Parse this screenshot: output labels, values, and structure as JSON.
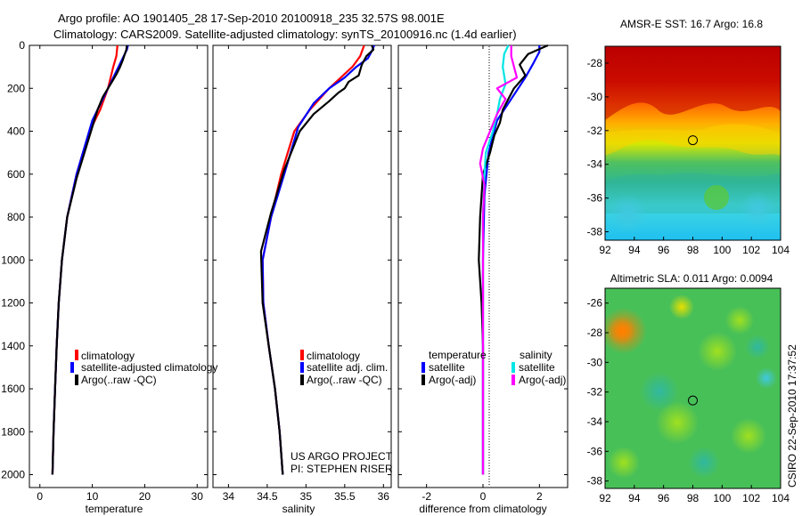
{
  "header": {
    "line1": "Argo profile: AO 1901405_28 17-Sep-2010 20100918_235 32.57S 98.001E",
    "line2": "Climatology: CARS2009. Satellite-adjusted climatology: synTS_20100916.nc (1.4d earlier)"
  },
  "colors": {
    "clim": "#ff0000",
    "sat": "#0000ff",
    "argo": "#000000",
    "sal_sat": "#00e5e5",
    "sal_argo": "#ff00ff"
  },
  "chart_data": [
    {
      "type": "line",
      "title": "",
      "xlabel": "temperature",
      "ylabel": "",
      "xlim": [
        -2,
        32
      ],
      "ylim": [
        2060,
        0
      ],
      "xticks": [
        0,
        10,
        20,
        30
      ],
      "yticks": [
        0,
        200,
        400,
        600,
        800,
        1000,
        1200,
        1400,
        1600,
        1800,
        2000
      ],
      "legend": [
        "climatology",
        "satellite-adjusted climatology",
        "Argo(..raw -QC)"
      ],
      "series": [
        {
          "name": "climatology",
          "color": "#ff0000",
          "x": [
            14.8,
            14.6,
            14.0,
            13.0,
            11.5,
            9.5,
            7.0,
            5.2,
            4.2,
            3.6,
            3.2,
            2.9,
            2.6,
            2.4
          ],
          "y": [
            0,
            50,
            100,
            200,
            300,
            400,
            600,
            800,
            1000,
            1200,
            1400,
            1600,
            1800,
            2000
          ]
        },
        {
          "name": "satellite-adjusted climatology",
          "color": "#0000ff",
          "x": [
            16.8,
            16.6,
            15.8,
            14.0,
            12.0,
            10.0,
            7.0,
            5.2,
            4.2,
            3.6,
            3.2,
            2.9,
            2.6,
            2.4
          ],
          "y": [
            0,
            20,
            60,
            150,
            250,
            350,
            600,
            800,
            1000,
            1200,
            1400,
            1600,
            1800,
            2000
          ]
        },
        {
          "name": "Argo(..raw -QC)",
          "color": "#000000",
          "x": [
            16.6,
            16.5,
            16.2,
            15.8,
            15.3,
            14.7,
            14.0,
            13.0,
            12.0,
            11.0,
            10.0,
            8.5,
            7.0,
            5.2,
            4.2,
            3.6,
            3.2,
            2.9,
            2.6,
            2.4
          ],
          "y": [
            0,
            20,
            40,
            70,
            100,
            130,
            160,
            200,
            240,
            300,
            380,
            500,
            620,
            800,
            1000,
            1200,
            1400,
            1600,
            1800,
            2000
          ]
        }
      ]
    },
    {
      "type": "line",
      "title": "",
      "xlabel": "salinity",
      "ylabel": "",
      "xlim": [
        33.8,
        36.1
      ],
      "ylim": [
        2060,
        0
      ],
      "xticks": [
        34,
        34.5,
        35,
        35.5,
        36
      ],
      "legend": [
        "climatology",
        "satellite adj. clim.",
        "Argo(..raw -QC)"
      ],
      "annotations": [
        "US ARGO PROJECT",
        "PI: STEPHEN RISER"
      ],
      "series": [
        {
          "name": "climatology",
          "color": "#ff0000",
          "x": [
            35.75,
            35.7,
            35.6,
            35.3,
            35.05,
            34.85,
            34.68,
            34.55,
            34.44,
            34.45,
            34.52,
            34.6,
            34.66,
            34.7
          ],
          "y": [
            0,
            50,
            100,
            200,
            300,
            400,
            600,
            800,
            1000,
            1200,
            1400,
            1600,
            1800,
            2000
          ]
        },
        {
          "name": "satellite adj. clim.",
          "color": "#0000ff",
          "x": [
            35.88,
            35.86,
            35.8,
            35.65,
            35.5,
            35.3,
            35.1,
            34.9,
            34.72,
            34.55,
            34.44,
            34.45,
            34.52,
            34.6,
            34.66,
            34.7
          ],
          "y": [
            0,
            20,
            60,
            100,
            150,
            200,
            270,
            380,
            600,
            800,
            1000,
            1200,
            1400,
            1600,
            1800,
            2000
          ]
        },
        {
          "name": "Argo(..raw -QC)",
          "color": "#000000",
          "x": [
            35.85,
            35.87,
            35.78,
            35.72,
            35.68,
            35.55,
            35.5,
            35.42,
            35.3,
            35.1,
            34.92,
            34.72,
            34.55,
            34.42,
            34.44,
            34.52,
            34.6,
            34.66,
            34.7
          ],
          "y": [
            0,
            20,
            50,
            90,
            140,
            170,
            200,
            220,
            260,
            320,
            400,
            580,
            780,
            960,
            1200,
            1400,
            1600,
            1800,
            2000
          ]
        }
      ]
    },
    {
      "type": "line",
      "title": "",
      "xlabel": "difference from climatology",
      "ylabel": "",
      "xlim": [
        -3,
        3
      ],
      "ylim": [
        2060,
        0
      ],
      "xticks": [
        -2,
        0,
        2
      ],
      "legend": [
        "temperature",
        "satellite",
        "Argo(-adj)",
        "salinity",
        "satellite",
        "Argo(-adj)"
      ],
      "series": [
        {
          "name": "temperature satellite",
          "color": "#0000ff",
          "x": [
            2.0,
            2.0,
            1.8,
            1.5,
            1.0,
            0.5,
            0.2,
            0.05,
            0.0,
            0.0,
            0.0
          ],
          "y": [
            0,
            30,
            80,
            150,
            250,
            350,
            500,
            700,
            1000,
            1500,
            2000
          ]
        },
        {
          "name": "temperature Argo(-adj)",
          "color": "#000000",
          "x": [
            2.3,
            1.6,
            1.3,
            1.5,
            1.1,
            0.9,
            0.7,
            0.6,
            0.4,
            0.25,
            0.0,
            -0.1,
            -0.15,
            -0.05,
            0.0,
            0.0,
            0.0
          ],
          "y": [
            0,
            40,
            90,
            140,
            200,
            250,
            300,
            360,
            420,
            500,
            600,
            800,
            1000,
            1200,
            1400,
            1600,
            2000
          ]
        },
        {
          "name": "salinity satellite",
          "color": "#00e5e5",
          "x": [
            0.9,
            0.75,
            0.7,
            0.8,
            0.6,
            0.5,
            0.35,
            0.1,
            0.05,
            0.0,
            0.0,
            0.0
          ],
          "y": [
            0,
            40,
            100,
            180,
            250,
            320,
            400,
            500,
            600,
            800,
            1200,
            2000
          ]
        },
        {
          "name": "salinity Argo(-adj)",
          "color": "#ff00ff",
          "x": [
            1.0,
            1.0,
            1.2,
            0.5,
            0.8,
            0.5,
            0.25,
            0.0,
            -0.1,
            0.05,
            0.0,
            0.0
          ],
          "y": [
            0,
            50,
            150,
            200,
            250,
            320,
            400,
            480,
            550,
            650,
            800,
            2000
          ]
        }
      ]
    },
    {
      "type": "heatmap",
      "title": "AMSR-E SST: 16.7 Argo: 16.8",
      "xlim": [
        92,
        104
      ],
      "ylim": [
        -38.5,
        -27
      ],
      "xticks": [
        92,
        94,
        96,
        98,
        100,
        102,
        104
      ],
      "yticks": [
        -28,
        -30,
        -32,
        -34,
        -36,
        -38
      ],
      "marker": {
        "x": 98,
        "y": -32.57
      }
    },
    {
      "type": "heatmap",
      "title": "Altimetric SLA: 0.011 Argo: 0.0094",
      "xlim": [
        92,
        104
      ],
      "ylim": [
        -38.5,
        -25
      ],
      "xticks": [
        92,
        94,
        96,
        98,
        100,
        102,
        104
      ],
      "yticks": [
        -26,
        -28,
        -30,
        -32,
        -34,
        -36,
        -38
      ],
      "marker": {
        "x": 98,
        "y": -32.57
      }
    }
  ],
  "side_stamp": "CSIRO 22-Sep-2010 17:37:52"
}
